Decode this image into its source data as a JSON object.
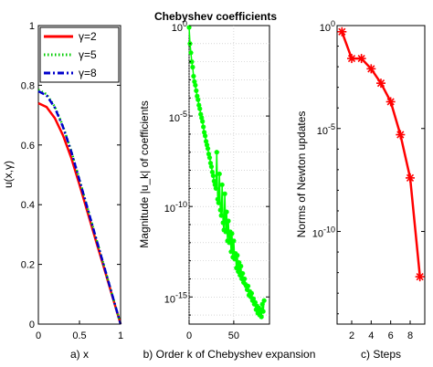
{
  "chart_data": [
    {
      "type": "line",
      "xlabel": "a) x",
      "ylabel": "u(x,γ)",
      "xlim": [
        0,
        1
      ],
      "ylim": [
        0,
        1
      ],
      "xticks": [
        "0",
        "0.5",
        "1"
      ],
      "yticks": [
        "0",
        "0.2",
        "0.4",
        "0.6",
        "0.8",
        "1"
      ],
      "grid": false,
      "legend": "top",
      "series": [
        {
          "name": "γ=2",
          "color": "#ff0000",
          "dash": "solid",
          "x": [
            0,
            0.1,
            0.2,
            0.3,
            0.4,
            0.5,
            0.6,
            0.7,
            0.8,
            0.9,
            1.0
          ],
          "y": [
            0.74,
            0.727,
            0.69,
            0.632,
            0.557,
            0.467,
            0.373,
            0.279,
            0.187,
            0.093,
            0.0
          ]
        },
        {
          "name": "γ=5",
          "color": "#00cc00",
          "dash": "dot",
          "x": [
            0,
            0.1,
            0.2,
            0.3,
            0.4,
            0.5,
            0.6,
            0.7,
            0.8,
            0.9,
            1.0
          ],
          "y": [
            0.785,
            0.77,
            0.728,
            0.663,
            0.58,
            0.484,
            0.387,
            0.29,
            0.194,
            0.097,
            0.0
          ]
        },
        {
          "name": "γ=8",
          "color": "#0000cc",
          "dash": "dashdot",
          "x": [
            0,
            0.1,
            0.2,
            0.3,
            0.4,
            0.5,
            0.6,
            0.7,
            0.8,
            0.9,
            1.0
          ],
          "y": [
            0.78,
            0.766,
            0.725,
            0.66,
            0.578,
            0.482,
            0.386,
            0.289,
            0.193,
            0.096,
            0.0
          ]
        }
      ]
    },
    {
      "type": "line",
      "title": "Chebyshev coefficients",
      "xlabel": "b) Order k of Chebyshev expansion",
      "ylabel": "Magnitude |u_k| of coefficients",
      "xlim": [
        0,
        90
      ],
      "ylim_exp": [
        -16.5,
        0
      ],
      "yscale": "log",
      "xticks": [
        "0",
        "50"
      ],
      "yticks_exp": [
        0,
        -5,
        -10,
        -15
      ],
      "grid": true,
      "series": [
        {
          "name": "",
          "color": "#00ff00",
          "marker": "star",
          "x": [
            0,
            1,
            2,
            3,
            4,
            5,
            6,
            7,
            8,
            9,
            10,
            11,
            12,
            13,
            14,
            15,
            16,
            17,
            18,
            19,
            20,
            21,
            22,
            23,
            24,
            25,
            26,
            27,
            28,
            29,
            30,
            31,
            32,
            33,
            34,
            35,
            36,
            37,
            38,
            39,
            40,
            41,
            42,
            43,
            44,
            45,
            46,
            47,
            48,
            49,
            50,
            51,
            52,
            53,
            54,
            55,
            56,
            57,
            58,
            59,
            60,
            61,
            62,
            63,
            64,
            65,
            66,
            67,
            68,
            69,
            70,
            71,
            72,
            73,
            74,
            75,
            76,
            77,
            78,
            79,
            80,
            81,
            82,
            83,
            84
          ],
          "y_exp": [
            -0.1,
            -1.0,
            -1.5,
            -2.0,
            -2.3,
            -2.8,
            -3.1,
            -3.3,
            -3.6,
            -3.9,
            -4.1,
            -4.4,
            -4.6,
            -4.9,
            -5.1,
            -5.3,
            -5.6,
            -5.9,
            -6.1,
            -6.4,
            -6.6,
            -6.8,
            -7.1,
            -7.3,
            -7.6,
            -7.8,
            -8.1,
            -8.3,
            -8.6,
            -8.8,
            -9.0,
            -7.0,
            -9.6,
            -9.8,
            -8.2,
            -10.2,
            -10.5,
            -8.8,
            -10.9,
            -11.3,
            -9.3,
            -11.4,
            -10.3,
            -11.9,
            -10.8,
            -12.0,
            -11.4,
            -12.5,
            -11.5,
            -12.8,
            -11.9,
            -12.9,
            -12.6,
            -13.4,
            -12.7,
            -13.6,
            -13.1,
            -13.8,
            -13.3,
            -14.0,
            -13.7,
            -14.2,
            -14.0,
            -14.3,
            -14.4,
            -14.6,
            -14.4,
            -14.9,
            -14.7,
            -15.0,
            -14.8,
            -15.2,
            -15.1,
            -15.4,
            -15.3,
            -15.7,
            -15.5,
            -15.9,
            -15.6,
            -16.0,
            -15.7,
            -16.1,
            -15.4,
            -15.8,
            -15.2
          ]
        }
      ]
    },
    {
      "type": "line",
      "xlabel": "c) Steps",
      "ylabel": "Norms of Newton updates",
      "xlim": [
        0.5,
        9.5
      ],
      "ylim_exp": [
        -14.5,
        0
      ],
      "yscale": "log",
      "xticks": [
        "2",
        "4",
        "6",
        "8"
      ],
      "yticks_exp": [
        0,
        -5,
        -10
      ],
      "grid": false,
      "series": [
        {
          "name": "",
          "color": "#ff0000",
          "marker": "star",
          "x": [
            1,
            2,
            3,
            4,
            5,
            6,
            7,
            8,
            9
          ],
          "y_exp": [
            -0.3,
            -1.6,
            -1.6,
            -2.1,
            -2.8,
            -3.7,
            -5.3,
            -7.4,
            -12.2
          ]
        }
      ]
    }
  ]
}
